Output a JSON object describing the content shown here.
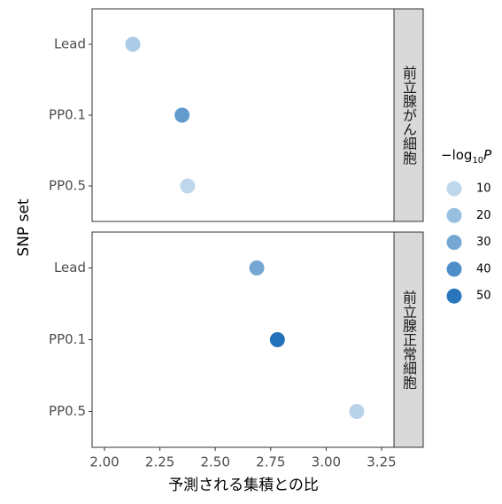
{
  "chart_data": {
    "type": "scatter",
    "xlabel": "予測される集積との比",
    "ylabel": "SNP set",
    "xlim": [
      1.944,
      3.306
    ],
    "xticks": [
      {
        "value": 2,
        "label": "2.00"
      },
      2.25,
      {
        "value": 2.5,
        "label": "2.50"
      },
      2.75,
      {
        "value": 3,
        "label": "3.00"
      },
      3.25
    ],
    "categories": [
      "Lead",
      "PP0.1",
      "PP0.5"
    ],
    "facets": [
      {
        "label": "前立腺がん細胞",
        "values": [
          2.128,
          2.35,
          2.375
        ],
        "color_values": [
          15,
          35,
          10
        ]
      },
      {
        "label": "前立腺正常細胞",
        "values": [
          2.687,
          2.78,
          3.138
        ],
        "color_values": [
          30,
          52,
          12
        ]
      }
    ],
    "color_legend": {
      "title": {
        "main": "−log",
        "sub": "10",
        "italic": "P"
      },
      "ticks": [
        10,
        20,
        30,
        40,
        50
      ]
    },
    "colorlim": [
      8,
      53
    ],
    "color_low": "#c6dcee",
    "color_high": "#1f6fb8"
  }
}
